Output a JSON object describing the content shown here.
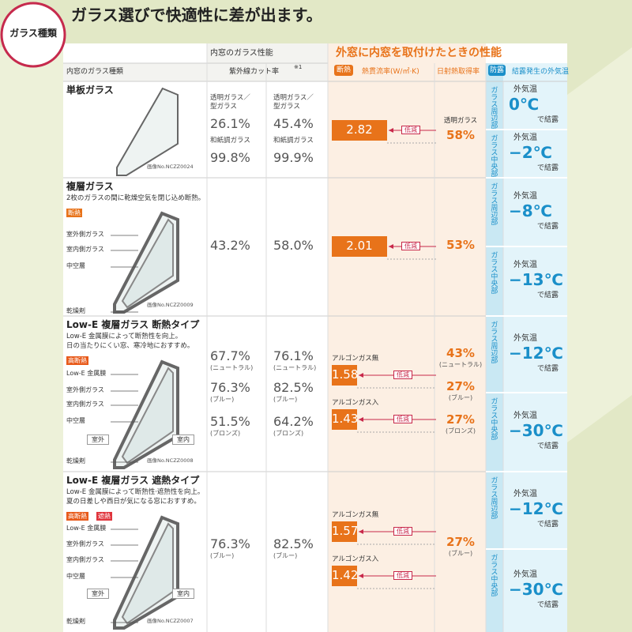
{
  "badge": "ガラス種類",
  "title": "ガラス選びで快適性に差が出ます。",
  "header": {
    "inner_performance": "内窓のガラス性能",
    "outer_performance": "外窓に内窓を取付けたときの性能",
    "glass_type": "内窓のガラス種類",
    "uv_cut": "紫外線カット率",
    "uv_note": "※1",
    "insulation_tag": "断熱",
    "u_value": "熱貫流率(W/㎡·K)",
    "solar_gain": "日射熱取得率",
    "dew_tag": "防露",
    "dew_temp": "結露発生の外気温"
  },
  "rows": [
    {
      "name": "単板ガラス",
      "desc": [],
      "tags": [],
      "parts": [],
      "sides": [],
      "image_no": "画像No.NCZZ0024",
      "uv": [
        {
          "left": {
            "label": [
              "透明ガラス／",
              "型ガラス"
            ],
            "value": "26.1%"
          },
          "right": {
            "label": [
              "透明ガラス／",
              "型ガラス"
            ],
            "value": "45.4%"
          }
        },
        {
          "left": {
            "label": [
              "和紙調ガラス"
            ],
            "value": "99.8%"
          },
          "right": {
            "label": [
              "和紙調ガラス"
            ],
            "value": "99.9%"
          }
        }
      ],
      "heat": [
        {
          "value": "2.82",
          "reduce": "低減"
        }
      ],
      "solar": [
        {
          "label": "透明ガラス",
          "value": "58%"
        }
      ],
      "dew": [
        {
          "part": "ガラス周辺部",
          "prefix": "外気温",
          "temp": "0℃",
          "suffix": "で結露"
        },
        {
          "part": "ガラス中央部",
          "prefix": "外気温",
          "temp": "−2℃",
          "suffix": "で結露"
        }
      ]
    },
    {
      "name": "複層ガラス",
      "desc": [
        "2枚のガラスの間に乾燥空気を閉じ込め断熱。"
      ],
      "tags": [
        "断熱"
      ],
      "parts": [
        "室外側ガラス",
        "室内側ガラス",
        "中空層",
        "乾燥剤"
      ],
      "sides": [],
      "image_no": "画像No.NCZZ0009",
      "uv": [
        {
          "left": {
            "value": "43.2%"
          },
          "right": {
            "value": "58.0%"
          }
        }
      ],
      "heat": [
        {
          "value": "2.01",
          "reduce": "低減"
        }
      ],
      "solar": [
        {
          "value": "53%"
        }
      ],
      "dew": [
        {
          "part": "ガラス周辺部",
          "prefix": "外気温",
          "temp": "−8℃",
          "suffix": "で結露"
        },
        {
          "part": "ガラス中央部",
          "prefix": "外気温",
          "temp": "−13℃",
          "suffix": "で結露"
        }
      ]
    },
    {
      "name": "Low-E 複層ガラス 断熱タイプ",
      "desc": [
        "Low-E 金属膜によって断熱性を向上。",
        "日の当たりにくい窓、寒冷地におすすめ。"
      ],
      "tags": [
        "高断熱"
      ],
      "parts": [
        "Low-E 金属膜",
        "室外側ガラス",
        "室内側ガラス",
        "中空層",
        "乾燥剤"
      ],
      "sides": [
        "室外",
        "室内"
      ],
      "image_no": "画像No.NCZZ0008",
      "uv": [
        {
          "left": {
            "value": "67.7%",
            "note": "(ニュートラル)"
          },
          "right": {
            "value": "76.1%",
            "note": "(ニュートラル)"
          }
        },
        {
          "left": {
            "value": "76.3%",
            "note": "(ブルー)"
          },
          "right": {
            "value": "82.5%",
            "note": "(ブルー)"
          }
        },
        {
          "left": {
            "value": "51.5%",
            "note": "(ブロンズ)"
          },
          "right": {
            "value": "64.2%",
            "note": "(ブロンズ)"
          }
        }
      ],
      "heat": [
        {
          "label": "アルゴンガス無",
          "value": "1.58",
          "reduce": "低減"
        },
        {
          "label": "アルゴンガス入",
          "value": "1.43",
          "reduce": "低減"
        }
      ],
      "solar": [
        {
          "value": "43%",
          "note": "(ニュートラル)"
        },
        {
          "value": "27%",
          "note": "(ブルー)"
        },
        {
          "value": "27%",
          "note": "(ブロンズ)"
        }
      ],
      "dew": [
        {
          "part": "ガラス周辺部",
          "prefix": "外気温",
          "temp": "−12℃",
          "suffix": "で結露"
        },
        {
          "part": "ガラス中央部",
          "prefix": "外気温",
          "temp": "−30℃",
          "suffix": "で結露"
        }
      ]
    },
    {
      "name": "Low-E 複層ガラス 遮熱タイプ",
      "desc": [
        "Low-E 金属膜によって断熱性·遮熱性を向上。",
        "夏の日差しや西日が気になる窓におすすめ。"
      ],
      "tags": [
        "高断熱",
        "遮熱"
      ],
      "parts": [
        "Low-E 金属膜",
        "室外側ガラス",
        "室内側ガラス",
        "中空層",
        "乾燥剤"
      ],
      "sides": [
        "室外",
        "室内"
      ],
      "image_no": "画像No.NCZZ0007",
      "uv": [
        {
          "left": {
            "value": "76.3%",
            "note": "(ブルー)"
          },
          "right": {
            "value": "82.5%",
            "note": "(ブルー)"
          }
        }
      ],
      "heat": [
        {
          "label": "アルゴンガス無",
          "value": "1.57",
          "reduce": "低減"
        },
        {
          "label": "アルゴンガス入",
          "value": "1.42",
          "reduce": "低減"
        }
      ],
      "solar": [
        {
          "value": "27%",
          "note": "(ブルー)"
        }
      ],
      "dew": [
        {
          "part": "ガラス周辺部",
          "prefix": "外気温",
          "temp": "−12℃",
          "suffix": "で結露"
        },
        {
          "part": "ガラス中央部",
          "prefix": "外気温",
          "temp": "−30℃",
          "suffix": "で結露"
        }
      ]
    }
  ]
}
